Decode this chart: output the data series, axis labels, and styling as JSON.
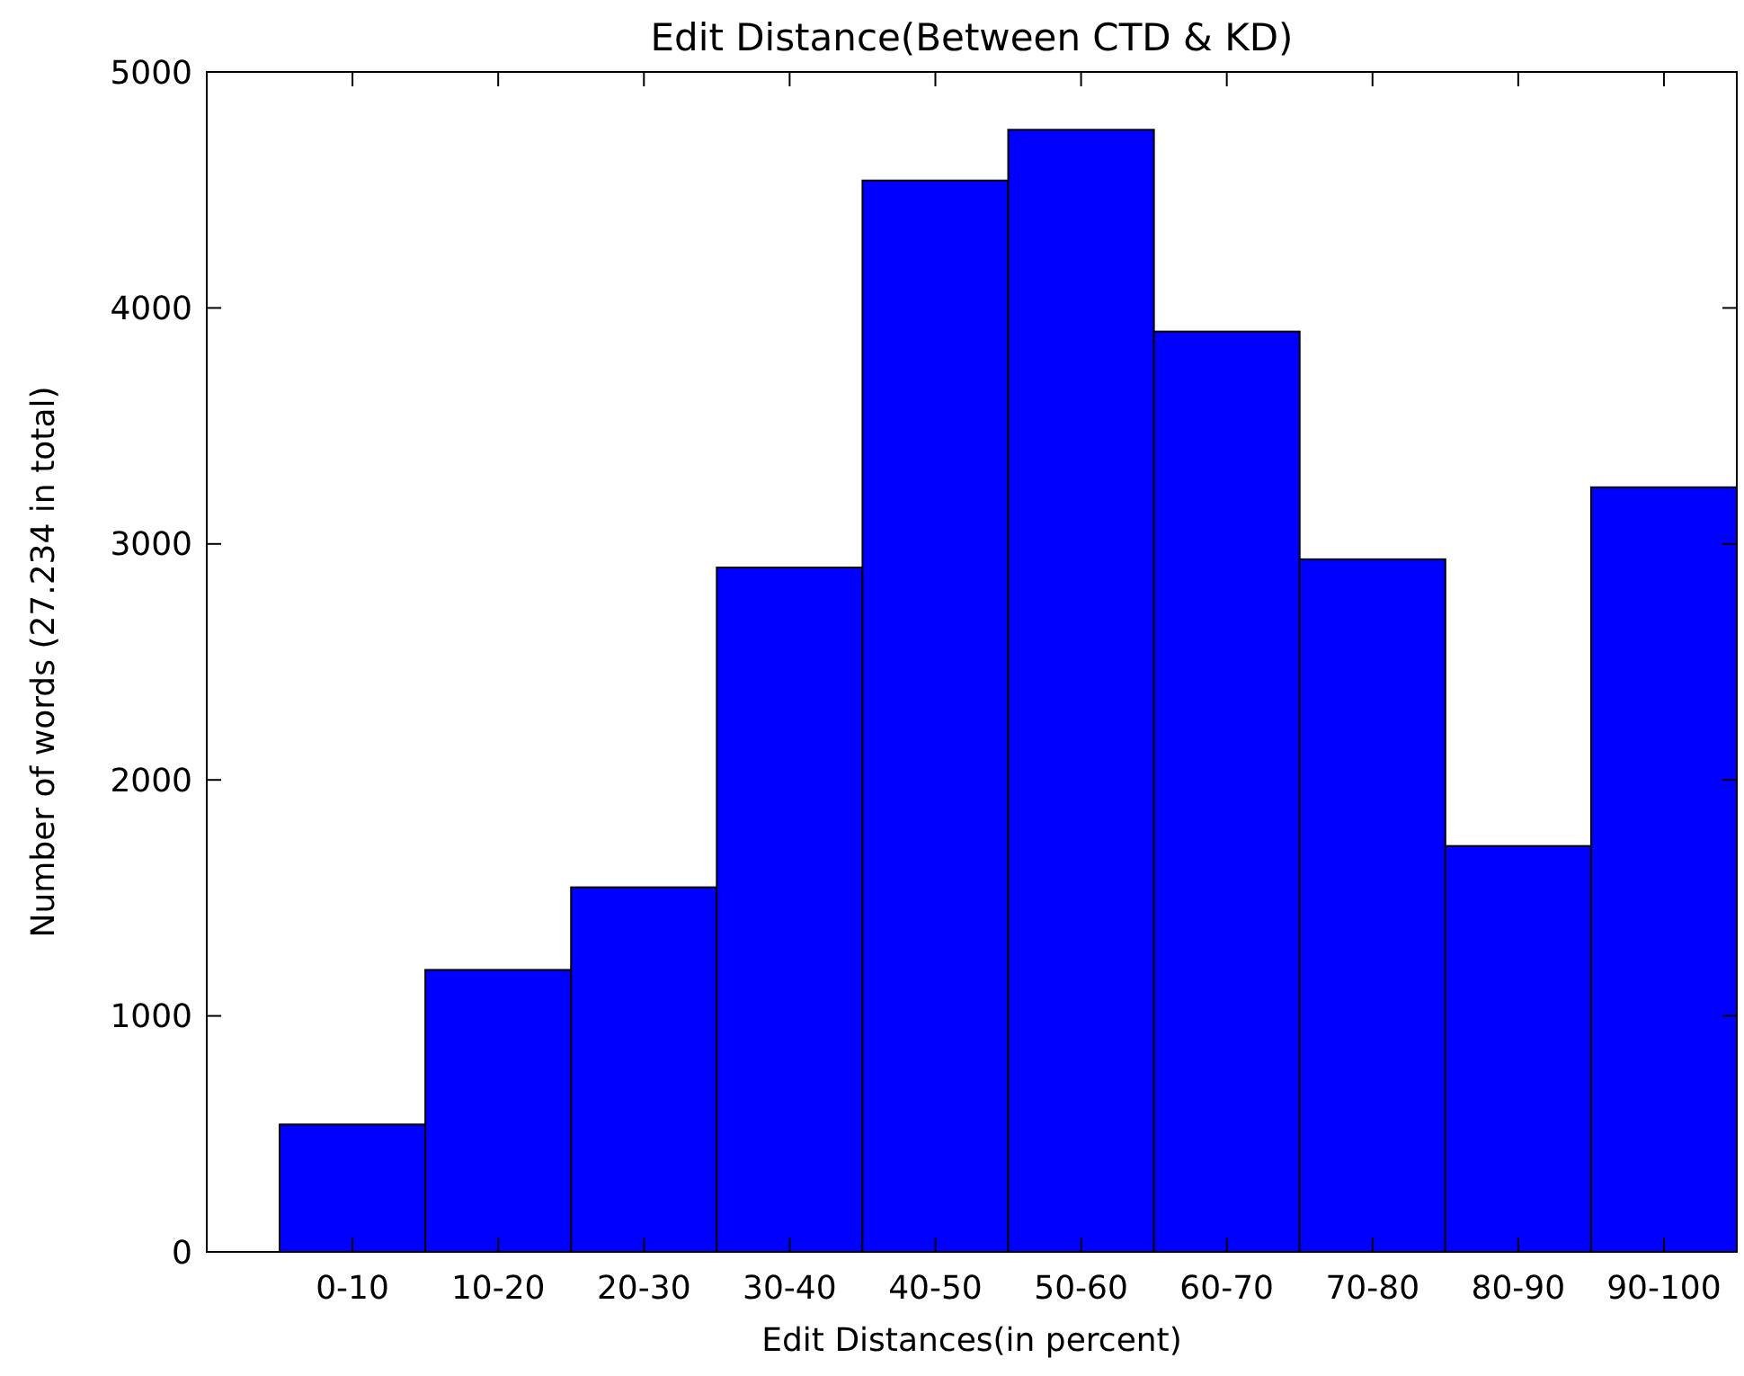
{
  "chart_data": {
    "type": "bar",
    "title": "Edit Distance(Between CTD & KD)",
    "xlabel": "Edit Distances(in percent)",
    "ylabel": "Number of words (27.234 in total)",
    "categories": [
      "0-10",
      "10-20",
      "20-30",
      "30-40",
      "40-50",
      "50-60",
      "60-70",
      "70-80",
      "80-90",
      "90-100"
    ],
    "values": [
      540,
      1195,
      1545,
      2900,
      4540,
      4755,
      3900,
      2935,
      1720,
      3240
    ],
    "color": "#0000ff",
    "ylim": [
      0,
      5000
    ],
    "yticks": [
      0,
      1000,
      2000,
      3000,
      4000,
      5000
    ]
  }
}
